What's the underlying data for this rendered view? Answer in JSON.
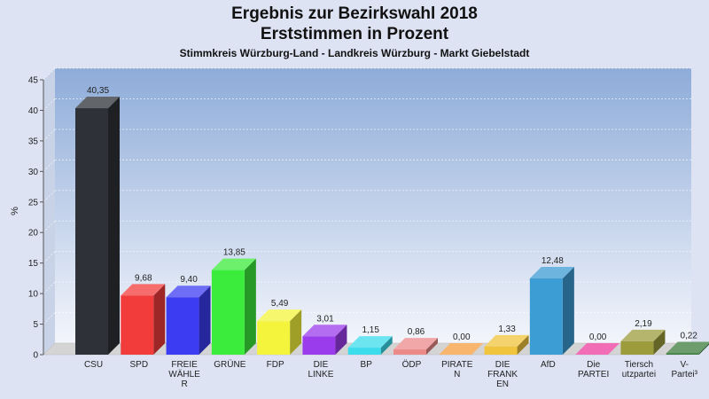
{
  "chart_data": {
    "type": "bar",
    "title": [
      "Ergebnis zur Bezirkswahl 2018",
      "Erststimmen in Prozent"
    ],
    "subtitle": "Stimmkreis Würzburg-Land - Landkreis Würzburg - Markt Giebelstadt",
    "ylabel": "%",
    "ylim": [
      0,
      45
    ],
    "yticks": [
      0,
      5,
      10,
      15,
      20,
      25,
      30,
      35,
      40,
      45
    ],
    "grid": true,
    "categories": [
      [
        "CSU"
      ],
      [
        "SPD"
      ],
      [
        "FREIE",
        "WÄHLE",
        "R"
      ],
      [
        "GRÜNE"
      ],
      [
        "FDP"
      ],
      [
        "DIE",
        "LINKE"
      ],
      [
        "BP"
      ],
      [
        "ÖDP"
      ],
      [
        "PIRATE",
        "N"
      ],
      [
        "DIE",
        "FRANK",
        "EN"
      ],
      [
        "AfD"
      ],
      [
        "Die",
        "PARTEI"
      ],
      [
        "Tiersch",
        "utzpartei"
      ],
      [
        "V-",
        "Partei³"
      ]
    ],
    "values": [
      40.35,
      9.68,
      9.4,
      13.85,
      5.49,
      3.01,
      1.15,
      0.86,
      0.0,
      1.33,
      12.48,
      0.0,
      2.19,
      0.22
    ],
    "value_labels": [
      "40,35",
      "9,68",
      "9,40",
      "13,85",
      "5,49",
      "3,01",
      "1,15",
      "0,86",
      "0,00",
      "1,33",
      "12,48",
      "0,00",
      "2,19",
      "0,22"
    ],
    "colors": [
      "#2e3138",
      "#f23c3c",
      "#3c3cf2",
      "#3cec3c",
      "#f4f43c",
      "#9b3cec",
      "#3cdcec",
      "#ec8a8a",
      "#f49c3c",
      "#f0c43c",
      "#3c9cd4",
      "#ec3c9c",
      "#9c9c3c",
      "#3c7c3c"
    ]
  }
}
